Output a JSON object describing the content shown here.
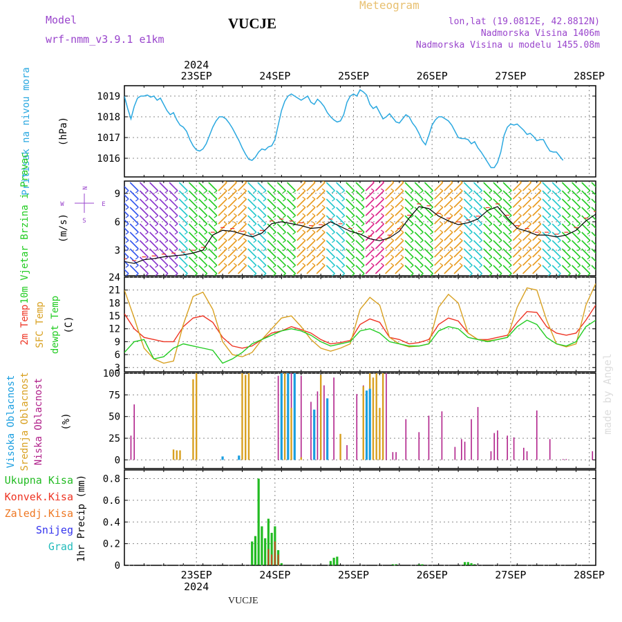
{
  "header": {
    "model_label": "Model",
    "model_name": "wrf-nmm_v3.9.1 e1km",
    "station": "VUCJE",
    "product": "Meteogram",
    "coords": "lon,lat (19.0812E, 42.8812N)",
    "elevation": "Nadmorska Visina 1406m",
    "model_elevation": "Nadmorska Visina u modelu 1455.08m"
  },
  "footer": {
    "station": "VUCJE",
    "credit": "made by Angel"
  },
  "colors": {
    "pressure": "#2aa8e0",
    "wind_green": "#22cc22",
    "wind_cyan": "#22c8cc",
    "wind_blue": "#3355ee",
    "wind_purple": "#8833cc",
    "wind_orange": "#e89a1e",
    "wind_magenta": "#dd2288",
    "temp": "#ee3322",
    "sfc_temp": "#d8a020",
    "dewpoint": "#22cc22",
    "high_cloud": "#1a9ee0",
    "mid_cloud": "#d8a020",
    "low_cloud": "#b0208a",
    "total_precip": "#22bb22",
    "convective": "#ee3322",
    "freezing": "#ee7722",
    "snow": "#3333ee",
    "hail": "#22bbbb",
    "header_purple": "#9944cc",
    "meteogram_label": "#e8c070"
  },
  "chart_data": [
    {
      "type": "line",
      "panel": "pressure",
      "xlabels_top": [
        "23SEP",
        "24SEP",
        "25SEP",
        "26SEP",
        "27SEP",
        "28SEP"
      ],
      "year_top": "2024",
      "ylabel": "Pritisak na nivou mora",
      "unit": "(hPa)",
      "yticks": [
        1016,
        1017,
        1018,
        1019
      ],
      "ylim": [
        1015.1,
        1019.5
      ],
      "x_hours": [
        0,
        1,
        2,
        3,
        4,
        5,
        6,
        7,
        8,
        9,
        10,
        11,
        12,
        13,
        14,
        15,
        16,
        17,
        18,
        19,
        20,
        21,
        22,
        23,
        24,
        25,
        26,
        27,
        28,
        29,
        30,
        31,
        32,
        33,
        34,
        35,
        36,
        37,
        38,
        39,
        40,
        41,
        42,
        43,
        44,
        45,
        46,
        47,
        48,
        49,
        50,
        51,
        52,
        53,
        54,
        55,
        56,
        57,
        58,
        59,
        60,
        61,
        62,
        63,
        64,
        65,
        66,
        67,
        68,
        69,
        70,
        71,
        72,
        73,
        74,
        75,
        76,
        77,
        78,
        79,
        80,
        81,
        82,
        83,
        84,
        85,
        86,
        87,
        88,
        89,
        90,
        91,
        92,
        93,
        94,
        95,
        96,
        97,
        98,
        99,
        100,
        101,
        102,
        103,
        104,
        105,
        106,
        107,
        108,
        109,
        110,
        111,
        112,
        113,
        114,
        115,
        116,
        117,
        118,
        119,
        120,
        121,
        122,
        123,
        124,
        125,
        126,
        127,
        128,
        129,
        130,
        131,
        132,
        133,
        134,
        135,
        136,
        137,
        138,
        139,
        140,
        141,
        142,
        143,
        144
      ],
      "series": [
        {
          "values": [
            1019.0,
            1018.4,
            1017.9,
            1018.5,
            1018.9,
            1019.0,
            1019.0,
            1019.05,
            1018.95,
            1019.0,
            1018.8,
            1018.9,
            1018.6,
            1018.3,
            1018.1,
            1018.2,
            1017.85,
            1017.6,
            1017.5,
            1017.3,
            1016.9,
            1016.6,
            1016.4,
            1016.35,
            1016.45,
            1016.7,
            1017.1,
            1017.5,
            1017.8,
            1018.0,
            1018.0,
            1017.9,
            1017.7,
            1017.45,
            1017.15,
            1016.85,
            1016.5,
            1016.2,
            1015.95,
            1015.9,
            1016.05,
            1016.3,
            1016.45,
            1016.4,
            1016.55,
            1016.6,
            1016.9,
            1017.6,
            1018.3,
            1018.75,
            1019.0,
            1019.1,
            1019.0,
            1018.9,
            1018.8,
            1018.9,
            1019.0,
            1018.7,
            1018.6,
            1018.85,
            1018.7,
            1018.5,
            1018.2,
            1018.0,
            1017.85,
            1017.75,
            1017.8,
            1018.1,
            1018.7,
            1019.0,
            1019.1,
            1019.0,
            1019.3,
            1019.2,
            1019.05,
            1018.6,
            1018.4,
            1018.5,
            1018.2,
            1017.9,
            1018.0,
            1018.15,
            1017.95,
            1017.75,
            1017.7,
            1017.9,
            1018.1,
            1018.0,
            1017.7,
            1017.5,
            1017.2,
            1016.85,
            1016.65,
            1017.1,
            1017.6,
            1017.85,
            1018.0,
            1018.0,
            1017.9,
            1017.8,
            1017.6,
            1017.3,
            1017.0,
            1016.95,
            1016.95,
            1016.9,
            1016.7,
            1016.8,
            1016.5,
            1016.3,
            1016.05,
            1015.8,
            1015.55,
            1015.55,
            1015.8,
            1016.3,
            1017.1,
            1017.5,
            1017.65,
            1017.6,
            1017.65,
            1017.5,
            1017.35,
            1017.15,
            1017.2,
            1017.05,
            1016.85,
            1016.9,
            1016.9,
            1016.6,
            1016.35,
            1016.3,
            1016.3,
            1016.1,
            1015.9
          ]
        }
      ]
    },
    {
      "type": "line",
      "panel": "wind",
      "ylabel": "10m Vjetar Brzina i Pravac",
      "unit": "(m/s)",
      "compass": [
        "N",
        "E",
        "S",
        "W"
      ],
      "yticks": [
        3,
        6,
        9
      ],
      "ylim": [
        0.3,
        10.3
      ],
      "x_hours": [
        0,
        3,
        6,
        9,
        12,
        15,
        18,
        21,
        24,
        27,
        30,
        33,
        36,
        39,
        42,
        45,
        48,
        51,
        54,
        57,
        60,
        63,
        66,
        69,
        72,
        75,
        78,
        81,
        84,
        87,
        90,
        93,
        96,
        99,
        102,
        105,
        108,
        111,
        114,
        117,
        120,
        123,
        126,
        129,
        132,
        135,
        138,
        141,
        144
      ],
      "series": [
        {
          "name": "brzina",
          "values": [
            1.8,
            1.6,
            2.0,
            2.1,
            2.3,
            2.4,
            2.5,
            2.7,
            3.0,
            4.6,
            5.1,
            5.0,
            4.7,
            4.4,
            4.8,
            5.8,
            6.0,
            5.8,
            5.6,
            5.3,
            5.4,
            6.0,
            5.5,
            5.0,
            4.7,
            4.2,
            4.0,
            4.3,
            5.0,
            6.4,
            7.6,
            7.4,
            6.6,
            6.1,
            5.7,
            5.9,
            6.3,
            7.2,
            7.6,
            6.4,
            5.3,
            5.0,
            4.6,
            4.6,
            4.4,
            4.6,
            5.1,
            6.1,
            6.8
          ]
        }
      ],
      "sector_colors": [
        "blue",
        "blue",
        "purple",
        "purple",
        "purple",
        "purple",
        "cyan",
        "green",
        "green",
        "green",
        "orange",
        "orange",
        "orange",
        "cyan",
        "cyan",
        "green",
        "green",
        "green",
        "orange",
        "orange",
        "orange",
        "cyan",
        "cyan",
        "green",
        "green",
        "magenta",
        "magenta",
        "orange",
        "orange",
        "green",
        "green",
        "green",
        "orange",
        "orange",
        "orange",
        "cyan",
        "cyan",
        "green",
        "green",
        "green",
        "orange",
        "orange",
        "orange",
        "cyan",
        "cyan",
        "green",
        "green",
        "green",
        "green"
      ]
    },
    {
      "type": "line",
      "panel": "temperature",
      "ylabel_parts": [
        "2m Temp",
        "SFC Temp",
        "dewpt Temp"
      ],
      "unit": "(C)",
      "yticks": [
        3,
        6,
        9,
        12,
        15,
        18,
        21,
        24
      ],
      "ylim": [
        2,
        24
      ],
      "x_hours": [
        0,
        3,
        6,
        9,
        12,
        15,
        18,
        21,
        24,
        27,
        30,
        33,
        36,
        39,
        42,
        45,
        48,
        51,
        54,
        57,
        60,
        63,
        66,
        69,
        72,
        75,
        78,
        81,
        84,
        87,
        90,
        93,
        96,
        99,
        102,
        105,
        108,
        111,
        114,
        117,
        120,
        123,
        126,
        129,
        132,
        135,
        138,
        141,
        144
      ],
      "series": [
        {
          "name": "2m Temp",
          "values": [
            15.5,
            12.0,
            10.0,
            9.5,
            9.0,
            9.0,
            12.5,
            14.5,
            15.0,
            13.5,
            10.0,
            8.0,
            7.5,
            8.0,
            9.5,
            11.0,
            11.5,
            12.5,
            11.8,
            11.0,
            9.5,
            8.5,
            8.8,
            9.3,
            13.0,
            14.3,
            13.5,
            10.0,
            9.5,
            8.5,
            8.8,
            9.5,
            13.0,
            14.5,
            13.8,
            11.0,
            9.5,
            9.5,
            10.0,
            10.5,
            13.5,
            16.0,
            15.8,
            12.5,
            11.0,
            10.5,
            11.0,
            14.0,
            17.5
          ]
        },
        {
          "name": "SFC Temp",
          "values": [
            21.0,
            14.5,
            7.5,
            5.0,
            4.0,
            4.5,
            13.0,
            19.5,
            20.5,
            16.5,
            9.0,
            6.0,
            5.5,
            6.5,
            9.5,
            12.0,
            14.5,
            15.0,
            12.5,
            9.5,
            7.5,
            6.8,
            7.5,
            8.5,
            16.5,
            19.3,
            17.5,
            10.0,
            8.5,
            7.8,
            8.0,
            8.5,
            17.0,
            20.0,
            18.0,
            11.0,
            9.5,
            9.2,
            9.5,
            10.0,
            17.0,
            21.5,
            21.0,
            14.0,
            8.5,
            7.8,
            8.5,
            17.5,
            22.5
          ]
        },
        {
          "name": "dewpt Temp",
          "values": [
            6.5,
            9.0,
            9.5,
            5.0,
            5.5,
            7.5,
            8.5,
            8.0,
            7.5,
            7.0,
            4.0,
            5.0,
            6.5,
            8.5,
            9.5,
            10.5,
            11.5,
            12.0,
            11.5,
            10.5,
            9.0,
            8.0,
            8.5,
            9.0,
            11.5,
            12.0,
            11.0,
            9.0,
            8.5,
            8.0,
            8.0,
            8.5,
            11.5,
            12.5,
            12.0,
            10.0,
            9.5,
            9.0,
            9.5,
            10.0,
            12.5,
            14.0,
            13.0,
            10.0,
            8.5,
            8.0,
            9.0,
            12.5,
            14.0
          ]
        }
      ]
    },
    {
      "type": "bar",
      "panel": "clouds",
      "ylabel_parts": [
        "Visoka Oblacnost",
        "Srednja Oblacnost",
        "Niska Oblacnost"
      ],
      "unit": "(%)",
      "yticks": [
        0,
        25,
        50,
        75,
        100
      ],
      "ylim": [
        0,
        100
      ],
      "series": [
        {
          "name": "Niska Oblacnost",
          "x_hours": [
            2,
            3,
            22,
            47,
            49,
            51,
            54,
            57,
            59,
            61,
            64,
            66,
            68,
            71,
            73,
            75,
            77,
            80,
            82,
            83,
            86,
            90,
            93,
            97,
            101,
            103,
            104,
            106,
            108,
            112,
            113,
            114,
            117,
            119,
            122,
            123,
            126,
            130,
            134,
            135,
            143
          ],
          "values": [
            28,
            64,
            7,
            97,
            97,
            100,
            97,
            67,
            79,
            86,
            95,
            28,
            17,
            76,
            86,
            88,
            86,
            100,
            9,
            9,
            47,
            32,
            51,
            56,
            15,
            24,
            21,
            47,
            61,
            10,
            31,
            34,
            28,
            26,
            14,
            10,
            57,
            24,
            1,
            1,
            10
          ]
        },
        {
          "name": "Srednja Oblacnost",
          "x_hours": [
            15,
            16,
            17,
            21,
            22,
            36,
            37,
            38,
            48,
            49,
            50,
            51,
            54,
            60,
            66,
            73,
            75,
            76,
            77,
            78,
            79
          ],
          "values": [
            12,
            11,
            11,
            93,
            100,
            100,
            98,
            100,
            100,
            100,
            99,
            60,
            3,
            98,
            30,
            85,
            100,
            95,
            100,
            60,
            100
          ]
        },
        {
          "name": "Visoka Oblacnost",
          "x_hours": [
            30,
            35,
            48,
            50,
            52,
            58,
            62,
            74,
            75
          ],
          "values": [
            4,
            5,
            100,
            100,
            100,
            58,
            71,
            80,
            82
          ]
        }
      ]
    },
    {
      "type": "bar",
      "panel": "precipitation",
      "legend": [
        "Ukupna Kisa",
        "Konvek.Kisa",
        "Zaledj.Kisa",
        "Snijeg",
        "Grad"
      ],
      "ylabel": "1hr Precip (mm)",
      "yticks": [
        0,
        0.2,
        0.4,
        0.6,
        0.8
      ],
      "ylim": [
        0,
        0.88
      ],
      "xlabels_bottom": [
        "23SEP",
        "24SEP",
        "25SEP",
        "26SEP",
        "27SEP",
        "28SEP"
      ],
      "year_bottom": "2024",
      "series": [
        {
          "name": "Ukupna Kisa",
          "x_hours": [
            39,
            40,
            41,
            42,
            43,
            44,
            45,
            46,
            47,
            48,
            63,
            64,
            65,
            82,
            83,
            90,
            91,
            104,
            105,
            106,
            107
          ],
          "values": [
            0.22,
            0.27,
            0.8,
            0.36,
            0.25,
            0.43,
            0.3,
            0.36,
            0.14,
            0.02,
            0.04,
            0.07,
            0.08,
            0.01,
            0.01,
            0.01,
            0.01,
            0.03,
            0.03,
            0.02,
            0.01
          ]
        },
        {
          "name": "Konvek.Kisa",
          "x_hours": [
            44,
            45,
            46,
            47
          ],
          "values": [
            0.15,
            0.1,
            0.22,
            0.1
          ]
        }
      ]
    }
  ]
}
